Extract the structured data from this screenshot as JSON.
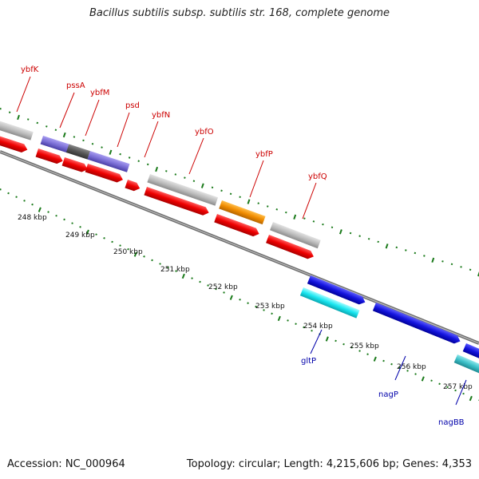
{
  "title": "Bacillus subtilis subsp. subtilis str. 168, complete genome",
  "footer": {
    "accession": "Accession: NC_000964",
    "summary": "Topology: circular; Length: 4,215,606 bp; Genes: 4,353"
  },
  "colors": {
    "top_gene_label": "#cc0000",
    "bottom_gene_label": "#0000aa",
    "tick_marks": "#1a7a1a",
    "backbone": "#888888",
    "cds_red": "#ee0000",
    "feature_gray": "#bdbdbd",
    "feature_purple": "#7b6fd6",
    "feature_orange": "#f08c00",
    "cds_blue": "#1414dd",
    "feature_cyan": "#19e6f0",
    "feature_teal": "#3cc0c8"
  },
  "scale_labels": [
    "248 kbp",
    "249 kbp",
    "250 kbp",
    "251 kbp",
    "252 kbp",
    "253 kbp",
    "254 kbp",
    "255 kbp",
    "256 kbp",
    "257 kbp"
  ],
  "top_genes": [
    "ybfK",
    "pssA",
    "ybfM",
    "psd",
    "ybfN",
    "ybfO",
    "ybfP",
    "ybfQ"
  ],
  "bottom_genes": [
    "gltP",
    "nagP",
    "nagBB"
  ]
}
